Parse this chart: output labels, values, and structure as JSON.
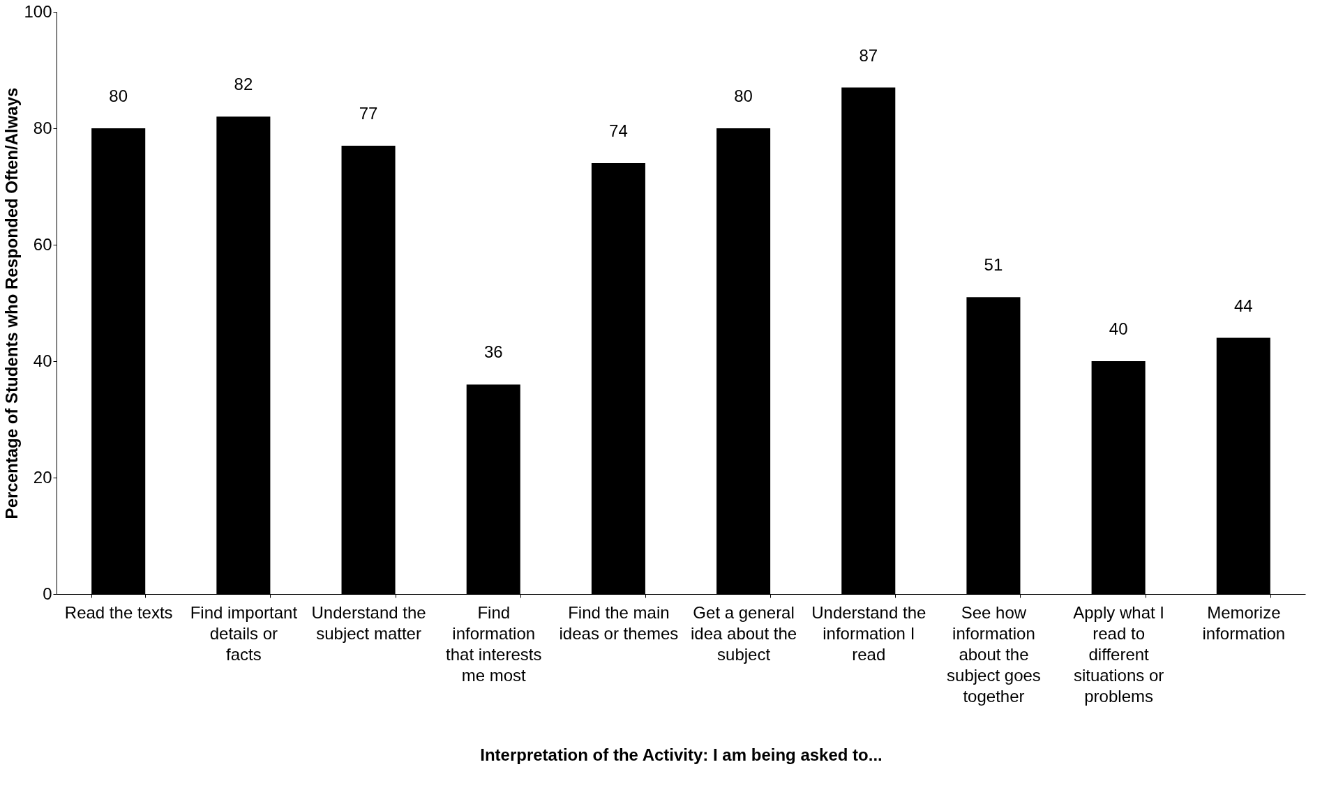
{
  "chart_data": {
    "type": "bar",
    "xlabel": "Interpretation of the Activity: I am being asked to...",
    "ylabel": "Percentage of Students who Responded Often/Always",
    "categories": [
      "Read the texts",
      "Find important details or facts",
      "Understand the subject matter",
      "Find information that interests me most",
      "Find the main ideas or themes",
      "Get a general idea about the subject",
      "Understand the information I read",
      "See how information about the subject goes together",
      "Apply what I read to different situations or problems",
      "Memorize information"
    ],
    "values": [
      80,
      82,
      77,
      36,
      74,
      80,
      87,
      51,
      40,
      44
    ],
    "color": "#000000",
    "ylim": [
      0,
      100
    ],
    "yticks": [
      0,
      20,
      40,
      60,
      80,
      100
    ],
    "grid": false,
    "data_labels": true
  }
}
